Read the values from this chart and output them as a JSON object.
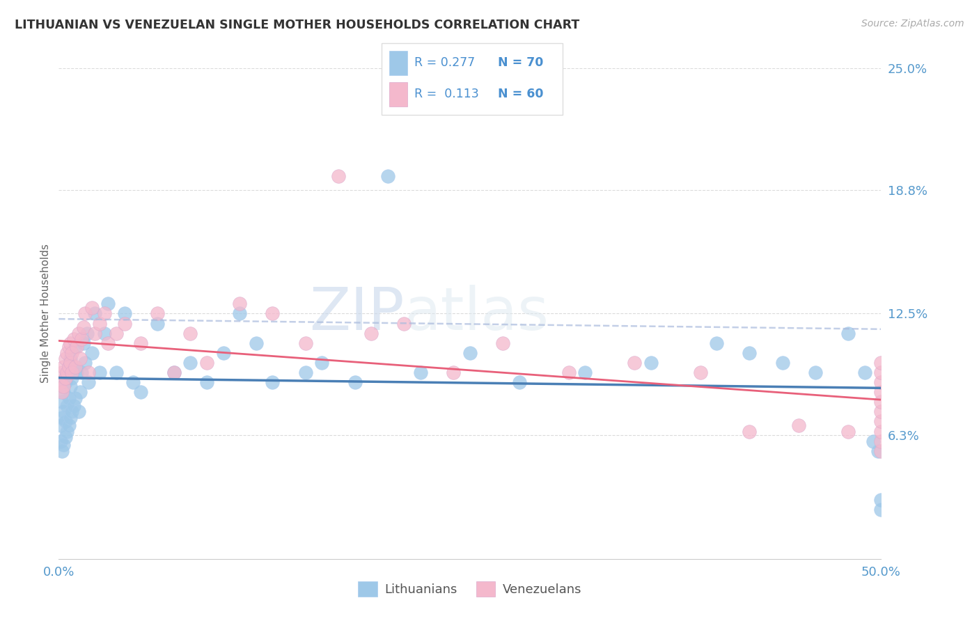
{
  "title": "LITHUANIAN VS VENEZUELAN SINGLE MOTHER HOUSEHOLDS CORRELATION CHART",
  "source": "Source: ZipAtlas.com",
  "ylabel": "Single Mother Households",
  "xlim": [
    0.0,
    0.5
  ],
  "ylim": [
    0.0,
    0.25
  ],
  "yticks": [
    0.063,
    0.125,
    0.188,
    0.25
  ],
  "ytick_labels": [
    "6.3%",
    "12.5%",
    "18.8%",
    "25.0%"
  ],
  "xtick_positions": [
    0.0,
    0.1,
    0.2,
    0.3,
    0.4,
    0.5
  ],
  "xtick_labels": [
    "0.0%",
    "",
    "",
    "",
    "",
    "50.0%"
  ],
  "R_lit": 0.277,
  "N_lit": 70,
  "R_ven": 0.113,
  "N_ven": 60,
  "legend_R1": "R = 0.277",
  "legend_N1": "N = 70",
  "legend_R2": "R =  0.113",
  "legend_N2": "N = 60",
  "color_blue_scatter": "#9ec8e8",
  "color_pink_scatter": "#f4b8cc",
  "color_blue_line": "#4a7fb5",
  "color_pink_line": "#e8607a",
  "color_blue_text": "#4a90d0",
  "color_axis": "#5599cc",
  "color_title": "#333333",
  "color_source": "#aaaaaa",
  "color_ylabel": "#666666",
  "watermark_color": "#d8e8f4",
  "grid_color": "#cccccc",
  "background": "#ffffff",
  "lit_x": [
    0.001,
    0.001,
    0.002,
    0.002,
    0.002,
    0.003,
    0.003,
    0.003,
    0.004,
    0.004,
    0.004,
    0.005,
    0.005,
    0.005,
    0.006,
    0.006,
    0.006,
    0.007,
    0.007,
    0.007,
    0.008,
    0.008,
    0.009,
    0.009,
    0.01,
    0.01,
    0.011,
    0.012,
    0.013,
    0.014,
    0.015,
    0.016,
    0.017,
    0.018,
    0.02,
    0.022,
    0.025,
    0.028,
    0.03,
    0.035,
    0.04,
    0.045,
    0.05,
    0.06,
    0.07,
    0.08,
    0.09,
    0.1,
    0.11,
    0.12,
    0.13,
    0.15,
    0.16,
    0.18,
    0.2,
    0.22,
    0.25,
    0.28,
    0.32,
    0.36,
    0.4,
    0.42,
    0.44,
    0.46,
    0.48,
    0.49,
    0.495,
    0.498,
    0.5,
    0.5
  ],
  "lit_y": [
    0.06,
    0.068,
    0.055,
    0.072,
    0.08,
    0.058,
    0.075,
    0.085,
    0.062,
    0.07,
    0.09,
    0.065,
    0.078,
    0.095,
    0.068,
    0.082,
    0.098,
    0.072,
    0.088,
    0.102,
    0.075,
    0.092,
    0.078,
    0.098,
    0.082,
    0.108,
    0.095,
    0.075,
    0.085,
    0.095,
    0.11,
    0.1,
    0.115,
    0.09,
    0.105,
    0.125,
    0.095,
    0.115,
    0.13,
    0.095,
    0.125,
    0.09,
    0.085,
    0.12,
    0.095,
    0.1,
    0.09,
    0.105,
    0.125,
    0.11,
    0.09,
    0.095,
    0.1,
    0.09,
    0.195,
    0.095,
    0.105,
    0.09,
    0.095,
    0.1,
    0.11,
    0.105,
    0.1,
    0.095,
    0.115,
    0.095,
    0.06,
    0.055,
    0.03,
    0.025
  ],
  "ven_x": [
    0.001,
    0.002,
    0.002,
    0.003,
    0.003,
    0.004,
    0.004,
    0.005,
    0.005,
    0.006,
    0.006,
    0.007,
    0.007,
    0.008,
    0.008,
    0.009,
    0.01,
    0.011,
    0.012,
    0.013,
    0.014,
    0.015,
    0.016,
    0.018,
    0.02,
    0.022,
    0.025,
    0.028,
    0.03,
    0.035,
    0.04,
    0.05,
    0.06,
    0.07,
    0.08,
    0.09,
    0.11,
    0.13,
    0.15,
    0.17,
    0.19,
    0.21,
    0.24,
    0.27,
    0.31,
    0.35,
    0.39,
    0.42,
    0.45,
    0.48,
    0.5,
    0.5,
    0.5,
    0.5,
    0.5,
    0.5,
    0.5,
    0.5,
    0.5,
    0.5
  ],
  "ven_y": [
    0.09,
    0.085,
    0.095,
    0.088,
    0.098,
    0.092,
    0.102,
    0.095,
    0.105,
    0.098,
    0.108,
    0.1,
    0.11,
    0.095,
    0.105,
    0.112,
    0.098,
    0.108,
    0.115,
    0.102,
    0.112,
    0.118,
    0.125,
    0.095,
    0.128,
    0.115,
    0.12,
    0.125,
    0.11,
    0.115,
    0.12,
    0.11,
    0.125,
    0.095,
    0.115,
    0.1,
    0.13,
    0.125,
    0.11,
    0.195,
    0.115,
    0.12,
    0.095,
    0.11,
    0.095,
    0.1,
    0.095,
    0.065,
    0.068,
    0.065,
    0.055,
    0.06,
    0.065,
    0.07,
    0.075,
    0.08,
    0.085,
    0.09,
    0.095,
    0.1
  ]
}
